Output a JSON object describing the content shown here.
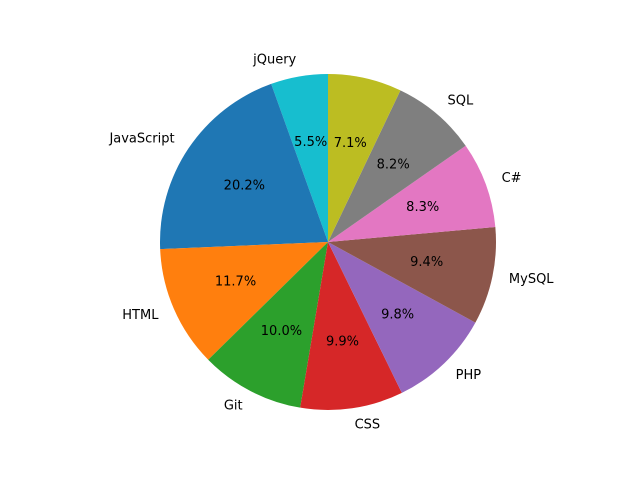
{
  "chart_data": {
    "type": "pie",
    "title": "",
    "start_angle_deg": 90,
    "direction": "counterclockwise",
    "slices": [
      {
        "label": "jQuery",
        "value": 5.5,
        "pct_label": "5.5%",
        "color": "#17becf"
      },
      {
        "label": "JavaScript",
        "value": 20.2,
        "pct_label": "20.2%",
        "color": "#1f77b4"
      },
      {
        "label": "HTML",
        "value": 11.7,
        "pct_label": "11.7%",
        "color": "#ff7f0e"
      },
      {
        "label": "Git",
        "value": 10.0,
        "pct_label": "10.0%",
        "color": "#2ca02c"
      },
      {
        "label": "CSS",
        "value": 9.9,
        "pct_label": "9.9%",
        "color": "#d62728"
      },
      {
        "label": "PHP",
        "value": 9.8,
        "pct_label": "9.8%",
        "color": "#9467bd"
      },
      {
        "label": "MySQL",
        "value": 9.4,
        "pct_label": "9.4%",
        "color": "#8c564b"
      },
      {
        "label": "C#",
        "value": 8.3,
        "pct_label": "8.3%",
        "color": "#e377c2"
      },
      {
        "label": "SQL",
        "value": 8.2,
        "pct_label": "8.2%",
        "color": "#7f7f7f"
      },
      {
        "label": "",
        "value": 7.1,
        "pct_label": "7.1%",
        "color": "#bcbd22"
      }
    ]
  }
}
